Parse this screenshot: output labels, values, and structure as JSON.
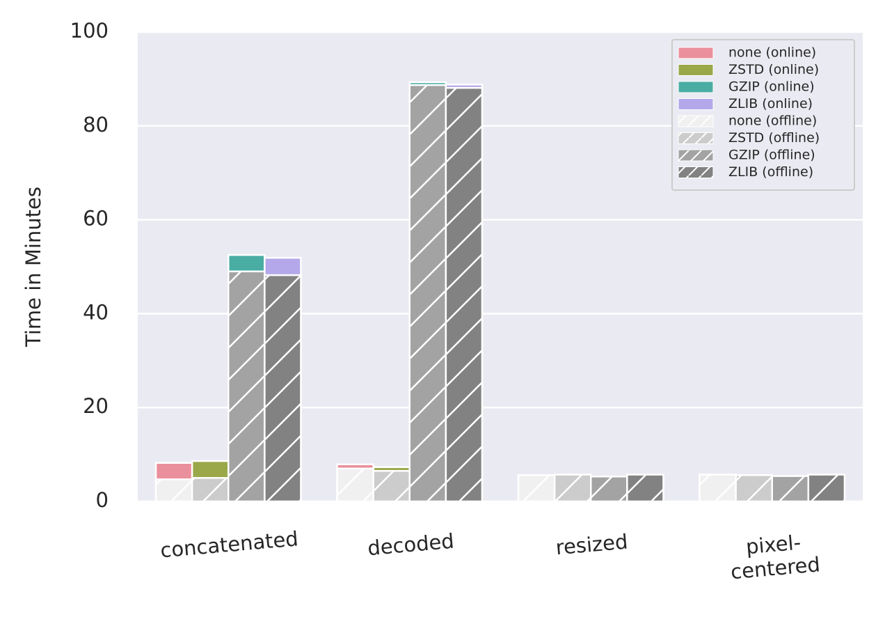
{
  "chart_data": {
    "type": "bar",
    "ylabel": "Time in Minutes",
    "categories": [
      "concatenated",
      "decoded",
      "resized",
      "pixel-\ncentered"
    ],
    "ylim": [
      0,
      100
    ],
    "yticks": [
      0,
      20,
      40,
      60,
      80,
      100
    ],
    "grid": true,
    "legend": "upper right",
    "series": [
      {
        "name": "none (online)",
        "color": "#ea909c",
        "values": [
          8.2,
          7.9,
          5.6,
          5.7
        ]
      },
      {
        "name": "ZSTD (online)",
        "color": "#9aa84a",
        "values": [
          8.6,
          7.3,
          5.7,
          5.6
        ]
      },
      {
        "name": "GZIP (online)",
        "color": "#4aada3",
        "values": [
          52.5,
          89.3,
          5.3,
          5.4
        ]
      },
      {
        "name": "ZLIB (online)",
        "color": "#b4a7ea",
        "values": [
          51.9,
          88.8,
          5.7,
          5.7
        ]
      },
      {
        "name": "none (offline)",
        "color": "#f0f0f0",
        "hatch": "/",
        "values": [
          4.7,
          7.0,
          5.6,
          5.7
        ]
      },
      {
        "name": "ZSTD (offline)",
        "color": "#cccccc",
        "hatch": "/",
        "values": [
          5.0,
          6.5,
          5.7,
          5.6
        ]
      },
      {
        "name": "GZIP (offline)",
        "color": "#a3a3a3",
        "hatch": "/",
        "values": [
          49.0,
          88.7,
          5.3,
          5.4
        ]
      },
      {
        "name": "ZLIB (offline)",
        "color": "#828282",
        "hatch": "/",
        "values": [
          48.2,
          88.1,
          5.7,
          5.7
        ]
      }
    ]
  }
}
